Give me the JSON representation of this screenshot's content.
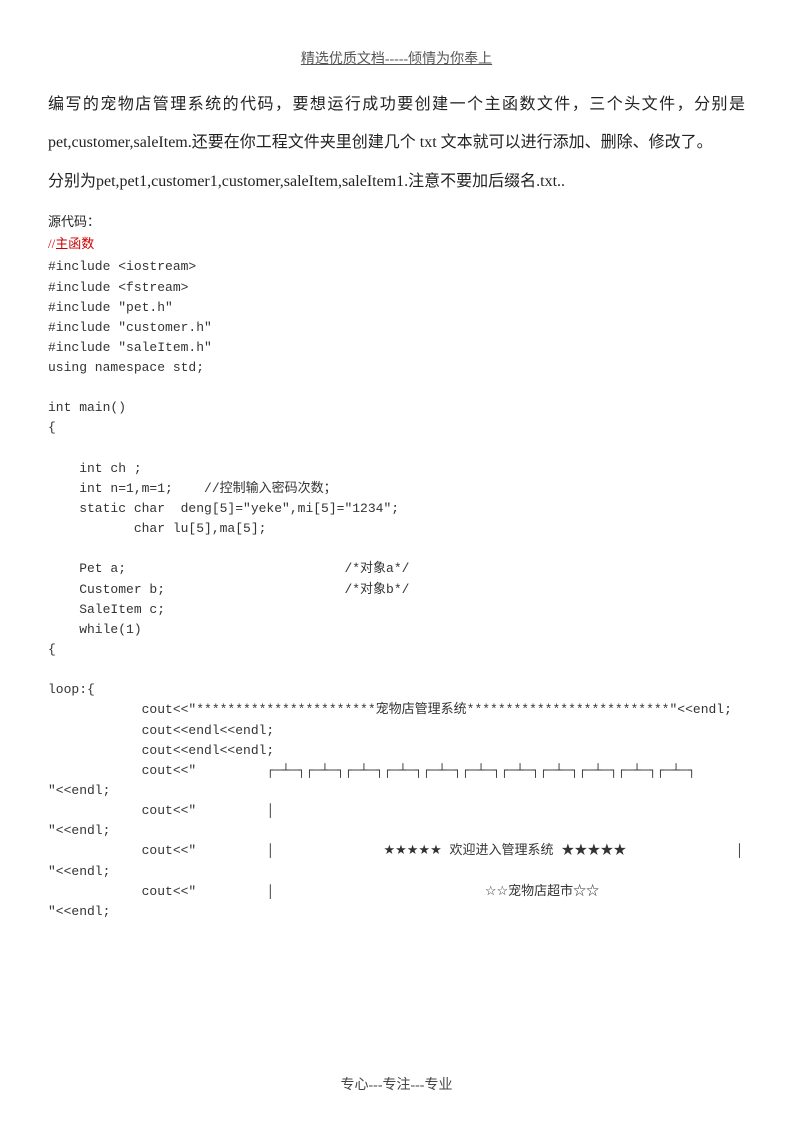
{
  "header": "精选优质文档-----倾情为你奉上",
  "intro": {
    "p1": "编写的宠物店管理系统的代码，要想运行成功要创建一个主函数文件，三个头文件，分别是 pet,customer,saleItem.还要在你工程文件夹里创建几个 txt 文本就可以进行添加、删除、修改了。",
    "p2": "分别为pet,pet1,customer1,customer,saleItem,saleItem1.注意不要加后缀名.txt.."
  },
  "sourceLabel": "源代码：",
  "mainComment": "//主函数",
  "code": "#include <iostream>\n#include <fstream>\n#include \"pet.h\"\n#include \"customer.h\"\n#include \"saleItem.h\"\nusing namespace std;\n\nint main()\n{\n\n    int ch ;\n    int n=1,m=1;    //控制输入密码次数；\n    static char  deng[5]=\"yeke\",mi[5]=\"1234\";\n           char lu[5],ma[5];\n\n    Pet a;                            /*对象a*/\n    Customer b;                       /*对象b*/\n    SaleItem c;\n    while(1)\n{\n\nloop:{\n            cout<<\"***********************宠物店管理系统**************************\"<<endl;\n            cout<<endl<<endl;\n            cout<<endl<<endl;\n            cout<<\"         ┌─┴─┐┌─┴─┐┌─┴─┐┌─┴─┐┌─┴─┐┌─┴─┐┌─┴─┐┌─┴─┐┌─┴─┐┌─┴─┐┌─┴─┐\n\"<<endl;\n            cout<<\"         │                                                                              │\n\"<<endl;\n            cout<<\"         │              ★★★★★ 欢迎进入管理系统 ★★★★★              │\n\"<<endl;\n            cout<<\"         │                           ☆☆宠物店超市☆☆                              │\n\"<<endl;",
  "footer": "专心---专注---专业"
}
